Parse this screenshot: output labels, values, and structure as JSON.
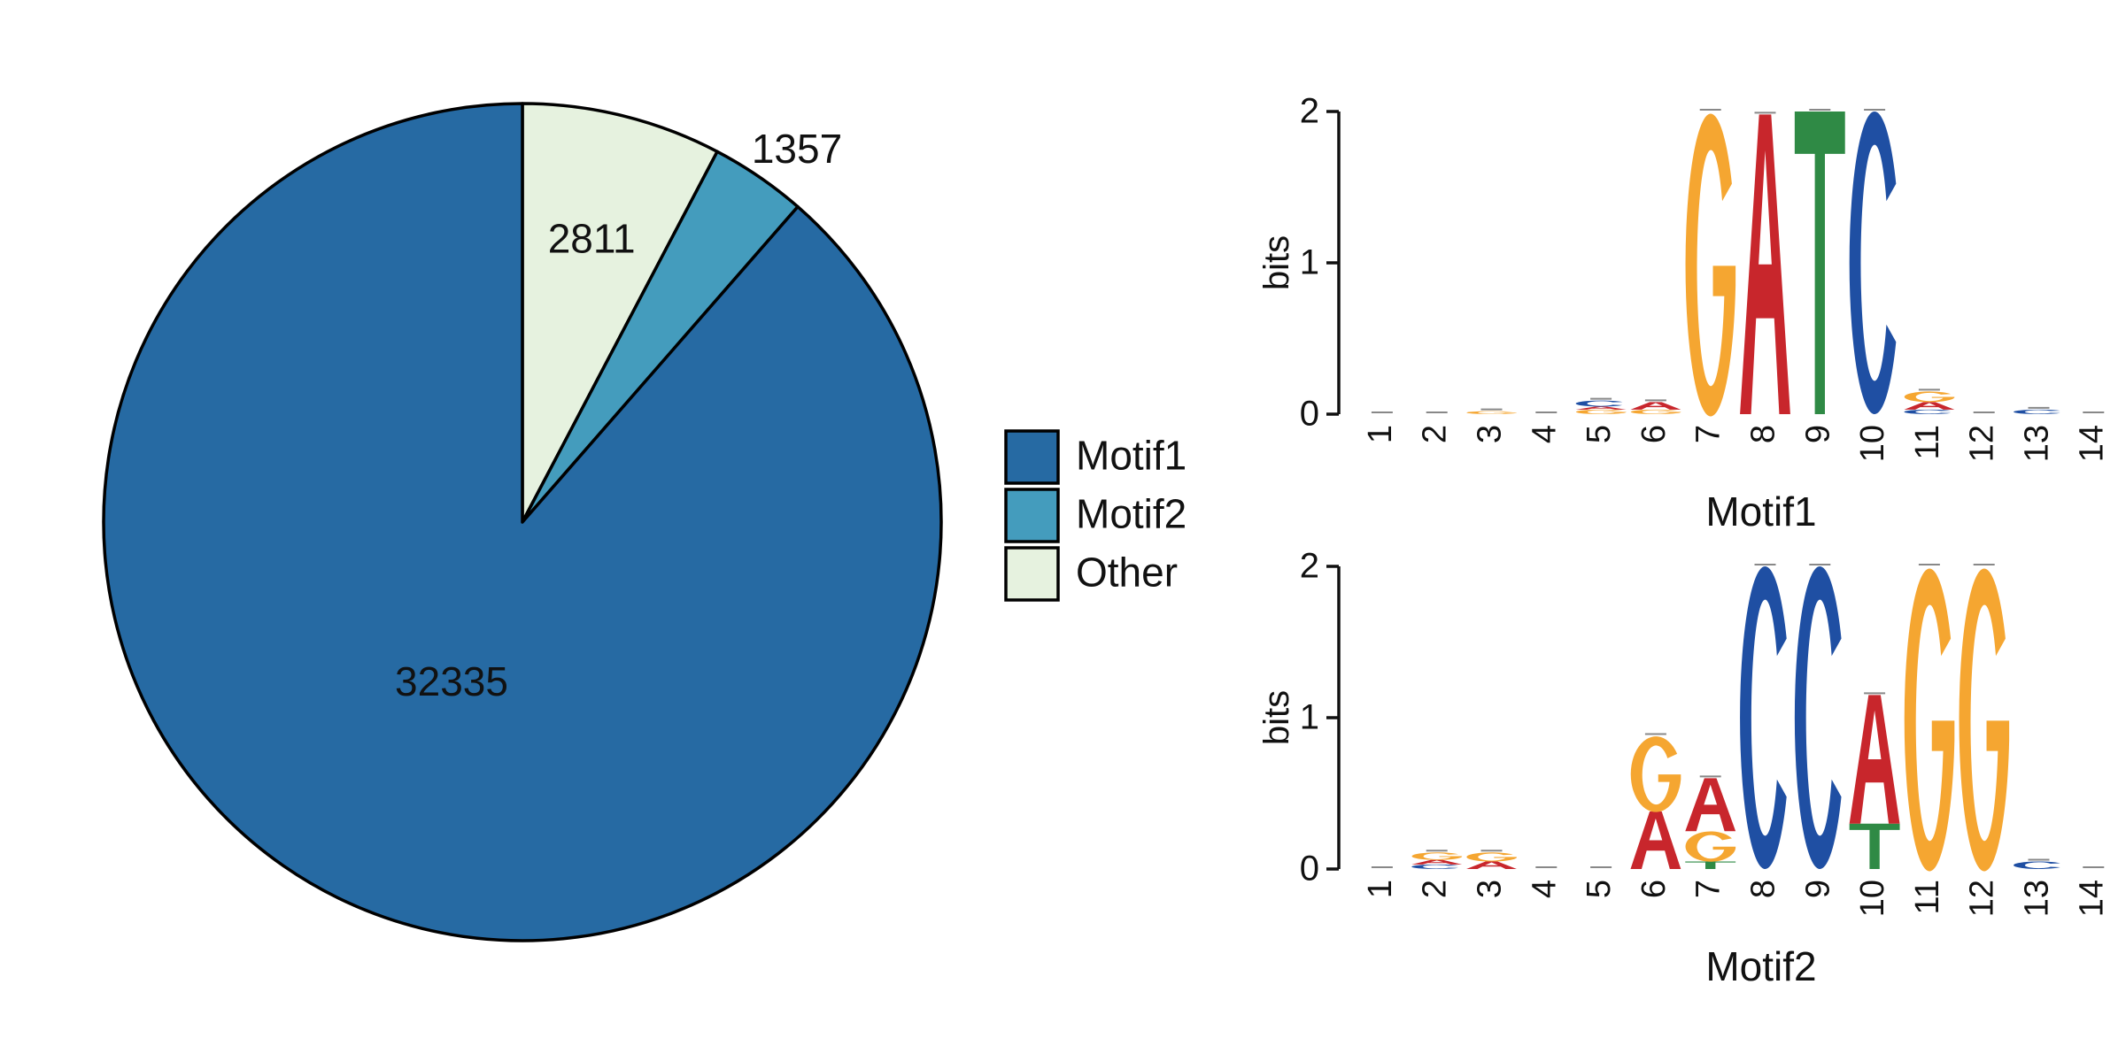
{
  "colors": {
    "motif1": "#266aa3",
    "motif2": "#449cbd",
    "other": "#e6f2df",
    "A": "#c8262c",
    "C": "#1f4fa3",
    "G": "#f5a631",
    "T": "#2f8a45"
  },
  "chart_data": [
    {
      "type": "pie",
      "slices": [
        {
          "name": "Other",
          "value": 2811,
          "label": "2811",
          "color": "#e6f2df"
        },
        {
          "name": "Motif2",
          "value": 1357,
          "label": "1357",
          "color": "#449cbd"
        },
        {
          "name": "Motif1",
          "value": 32335,
          "label": "32335",
          "color": "#266aa3"
        }
      ],
      "legend": {
        "placement": "right",
        "entries": [
          {
            "name": "Motif1",
            "color": "#266aa3"
          },
          {
            "name": "Motif2",
            "color": "#449cbd"
          },
          {
            "name": "Other",
            "color": "#e6f2df"
          }
        ]
      }
    },
    {
      "type": "sequence-logo",
      "title": "Motif1",
      "xlabel": "Motif1",
      "ylabel": "bits",
      "ylim": [
        0,
        2
      ],
      "yticks": [
        "0",
        "1",
        "2"
      ],
      "positions": [
        "1",
        "2",
        "3",
        "4",
        "5",
        "6",
        "7",
        "8",
        "9",
        "10",
        "11",
        "12",
        "13",
        "14"
      ],
      "columns": [
        [],
        [],
        [
          {
            "b": "G",
            "h": 0.02
          }
        ],
        [],
        [
          {
            "b": "G",
            "h": 0.03
          },
          {
            "b": "A",
            "h": 0.02
          },
          {
            "b": "C",
            "h": 0.04
          }
        ],
        [
          {
            "b": "G",
            "h": 0.03
          },
          {
            "b": "A",
            "h": 0.05
          }
        ],
        [
          {
            "b": "G",
            "h": 2.0
          }
        ],
        [
          {
            "b": "A",
            "h": 1.98
          }
        ],
        [
          {
            "b": "T",
            "h": 2.0
          }
        ],
        [
          {
            "b": "C",
            "h": 2.0
          }
        ],
        [
          {
            "b": "C",
            "h": 0.03
          },
          {
            "b": "A",
            "h": 0.05
          },
          {
            "b": "G",
            "h": 0.07
          }
        ],
        [],
        [
          {
            "b": "C",
            "h": 0.03
          }
        ],
        []
      ]
    },
    {
      "type": "sequence-logo",
      "title": "Motif2",
      "xlabel": "Motif2",
      "ylabel": "bits",
      "ylim": [
        0,
        2
      ],
      "yticks": [
        "0",
        "1",
        "2"
      ],
      "positions": [
        "1",
        "2",
        "3",
        "4",
        "5",
        "6",
        "7",
        "8",
        "9",
        "10",
        "11",
        "12",
        "13",
        "14"
      ],
      "columns": [
        [],
        [
          {
            "b": "C",
            "h": 0.03
          },
          {
            "b": "A",
            "h": 0.03
          },
          {
            "b": "G",
            "h": 0.05
          }
        ],
        [
          {
            "b": "A",
            "h": 0.05
          },
          {
            "b": "G",
            "h": 0.06
          }
        ],
        [],
        [],
        [
          {
            "b": "A",
            "h": 0.38
          },
          {
            "b": "G",
            "h": 0.5
          }
        ],
        [
          {
            "b": "T",
            "h": 0.05
          },
          {
            "b": "G",
            "h": 0.2
          },
          {
            "b": "A",
            "h": 0.35
          }
        ],
        [
          {
            "b": "C",
            "h": 2.0
          }
        ],
        [
          {
            "b": "C",
            "h": 2.0
          }
        ],
        [
          {
            "b": "T",
            "h": 0.3
          },
          {
            "b": "A",
            "h": 0.85
          }
        ],
        [
          {
            "b": "G",
            "h": 2.0
          }
        ],
        [
          {
            "b": "G",
            "h": 2.0
          }
        ],
        [
          {
            "b": "C",
            "h": 0.05
          }
        ],
        []
      ]
    }
  ]
}
